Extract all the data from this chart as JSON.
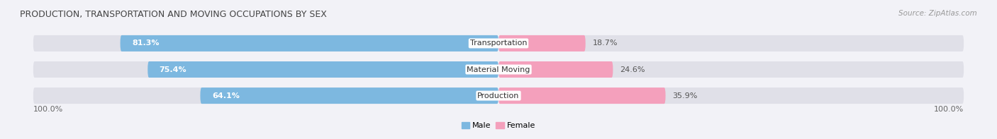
{
  "title": "PRODUCTION, TRANSPORTATION AND MOVING OCCUPATIONS BY SEX",
  "source": "Source: ZipAtlas.com",
  "categories": [
    "Transportation",
    "Material Moving",
    "Production"
  ],
  "male_values": [
    81.3,
    75.4,
    64.1
  ],
  "female_values": [
    18.7,
    24.6,
    35.9
  ],
  "male_color": "#7db8e0",
  "female_color": "#f4a0bc",
  "bar_bg_color": "#e0e0e8",
  "bg_color": "#f2f2f7",
  "male_label": "Male",
  "female_label": "Female",
  "left_label": "100.0%",
  "right_label": "100.0%",
  "title_fontsize": 9,
  "source_fontsize": 7.5,
  "axis_label_fontsize": 8,
  "bar_label_fontsize": 8,
  "category_fontsize": 8,
  "legend_fontsize": 8,
  "bar_height": 0.62,
  "figsize": [
    14.06,
    1.97
  ],
  "dpi": 100,
  "xlim": [
    -105,
    105
  ],
  "ylim": [
    -0.7,
    2.7
  ]
}
